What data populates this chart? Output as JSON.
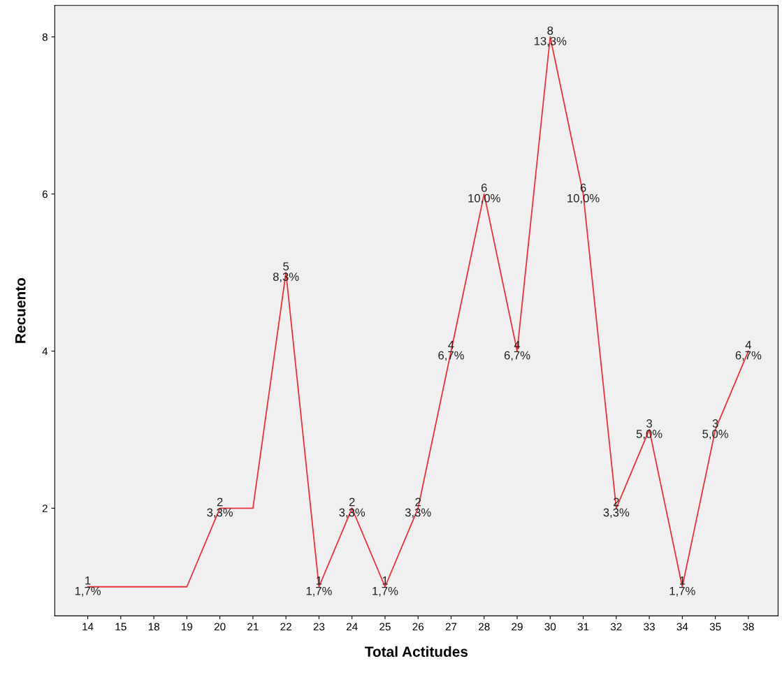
{
  "chart_data": {
    "type": "line",
    "xlabel": "Total Actitudes",
    "ylabel": "Recuento",
    "categories": [
      "14",
      "15",
      "18",
      "19",
      "20",
      "21",
      "22",
      "23",
      "24",
      "25",
      "26",
      "27",
      "28",
      "29",
      "30",
      "31",
      "32",
      "33",
      "34",
      "35",
      "38"
    ],
    "values": [
      1,
      1,
      1,
      1,
      2,
      2,
      5,
      1,
      2,
      1,
      2,
      4,
      6,
      4,
      8,
      6,
      2,
      3,
      1,
      3,
      4
    ],
    "value_labels": [
      "1\n1,7%",
      null,
      null,
      null,
      "2\n3,3%",
      null,
      "5\n8,3%",
      "1\n1,7%",
      "2\n3,3%",
      "1\n1,7%",
      "2\n3,3%",
      "4\n6,7%",
      "6\n10,0%",
      "4\n6,7%",
      "8\n13,3%",
      "6\n10,0%",
      "2\n3,3%",
      "3\n5,0%",
      "1\n1,7%",
      "3\n5,0%",
      "4\n6,7%"
    ],
    "color": "#e8333a",
    "ylim": [
      0.63,
      8.4
    ],
    "yticks": [
      2,
      4,
      6,
      8
    ],
    "grid": false,
    "marker": "none",
    "line_style": "solid"
  }
}
